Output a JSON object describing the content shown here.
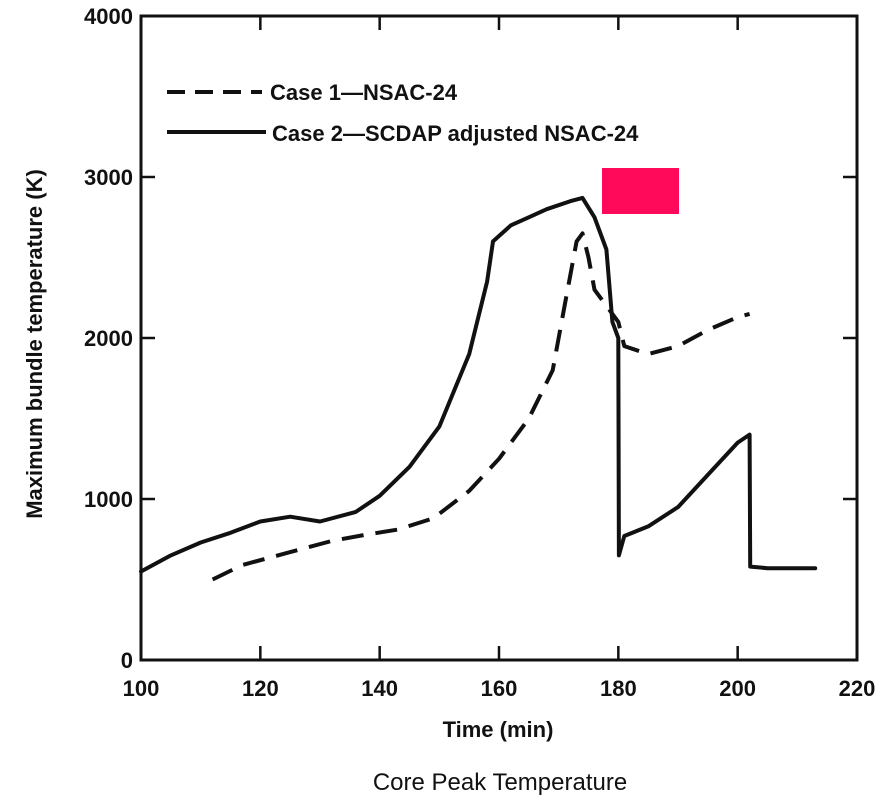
{
  "chart_data": {
    "type": "line",
    "title": "",
    "caption": "Core Peak Temperature",
    "xlabel": "Time (min)",
    "ylabel": "Maximum bundle temperature (K)",
    "xlim": [
      100,
      220
    ],
    "ylim": [
      0,
      4000
    ],
    "x_ticks": [
      100,
      120,
      140,
      160,
      180,
      200,
      220
    ],
    "y_ticks": [
      0,
      1000,
      2000,
      3000,
      4000
    ],
    "grid": false,
    "legend_position": "top-left",
    "series": [
      {
        "name": "Case 1—NSAC-24",
        "style": "dashed",
        "color": "#111111",
        "points": [
          [
            112,
            500
          ],
          [
            117,
            590
          ],
          [
            125,
            670
          ],
          [
            132,
            740
          ],
          [
            138,
            780
          ],
          [
            143,
            810
          ],
          [
            149,
            880
          ],
          [
            155,
            1050
          ],
          [
            160,
            1250
          ],
          [
            165,
            1500
          ],
          [
            169,
            1800
          ],
          [
            171,
            2200
          ],
          [
            173,
            2600
          ],
          [
            174,
            2650
          ],
          [
            175,
            2500
          ],
          [
            176,
            2300
          ],
          [
            178,
            2200
          ],
          [
            180,
            2100
          ],
          [
            181,
            1950
          ],
          [
            185,
            1900
          ],
          [
            190,
            1950
          ],
          [
            195,
            2050
          ],
          [
            200,
            2130
          ],
          [
            202,
            2150
          ]
        ]
      },
      {
        "name": "Case 2—SCDAP adjusted NSAC-24",
        "style": "solid",
        "color": "#111111",
        "points": [
          [
            100,
            550
          ],
          [
            105,
            650
          ],
          [
            110,
            730
          ],
          [
            115,
            790
          ],
          [
            120,
            860
          ],
          [
            125,
            890
          ],
          [
            130,
            860
          ],
          [
            136,
            920
          ],
          [
            140,
            1020
          ],
          [
            145,
            1200
          ],
          [
            150,
            1450
          ],
          [
            155,
            1900
          ],
          [
            158,
            2350
          ],
          [
            159,
            2600
          ],
          [
            162,
            2700
          ],
          [
            165,
            2750
          ],
          [
            168,
            2800
          ],
          [
            172,
            2850
          ],
          [
            174,
            2870
          ],
          [
            176,
            2750
          ],
          [
            178,
            2550
          ],
          [
            179,
            2100
          ],
          [
            180,
            2000
          ],
          [
            180.1,
            650
          ],
          [
            181,
            770
          ],
          [
            185,
            830
          ],
          [
            190,
            950
          ],
          [
            195,
            1150
          ],
          [
            200,
            1350
          ],
          [
            202,
            1400
          ],
          [
            202.1,
            580
          ],
          [
            205,
            570
          ],
          [
            213,
            570
          ]
        ]
      }
    ]
  }
}
